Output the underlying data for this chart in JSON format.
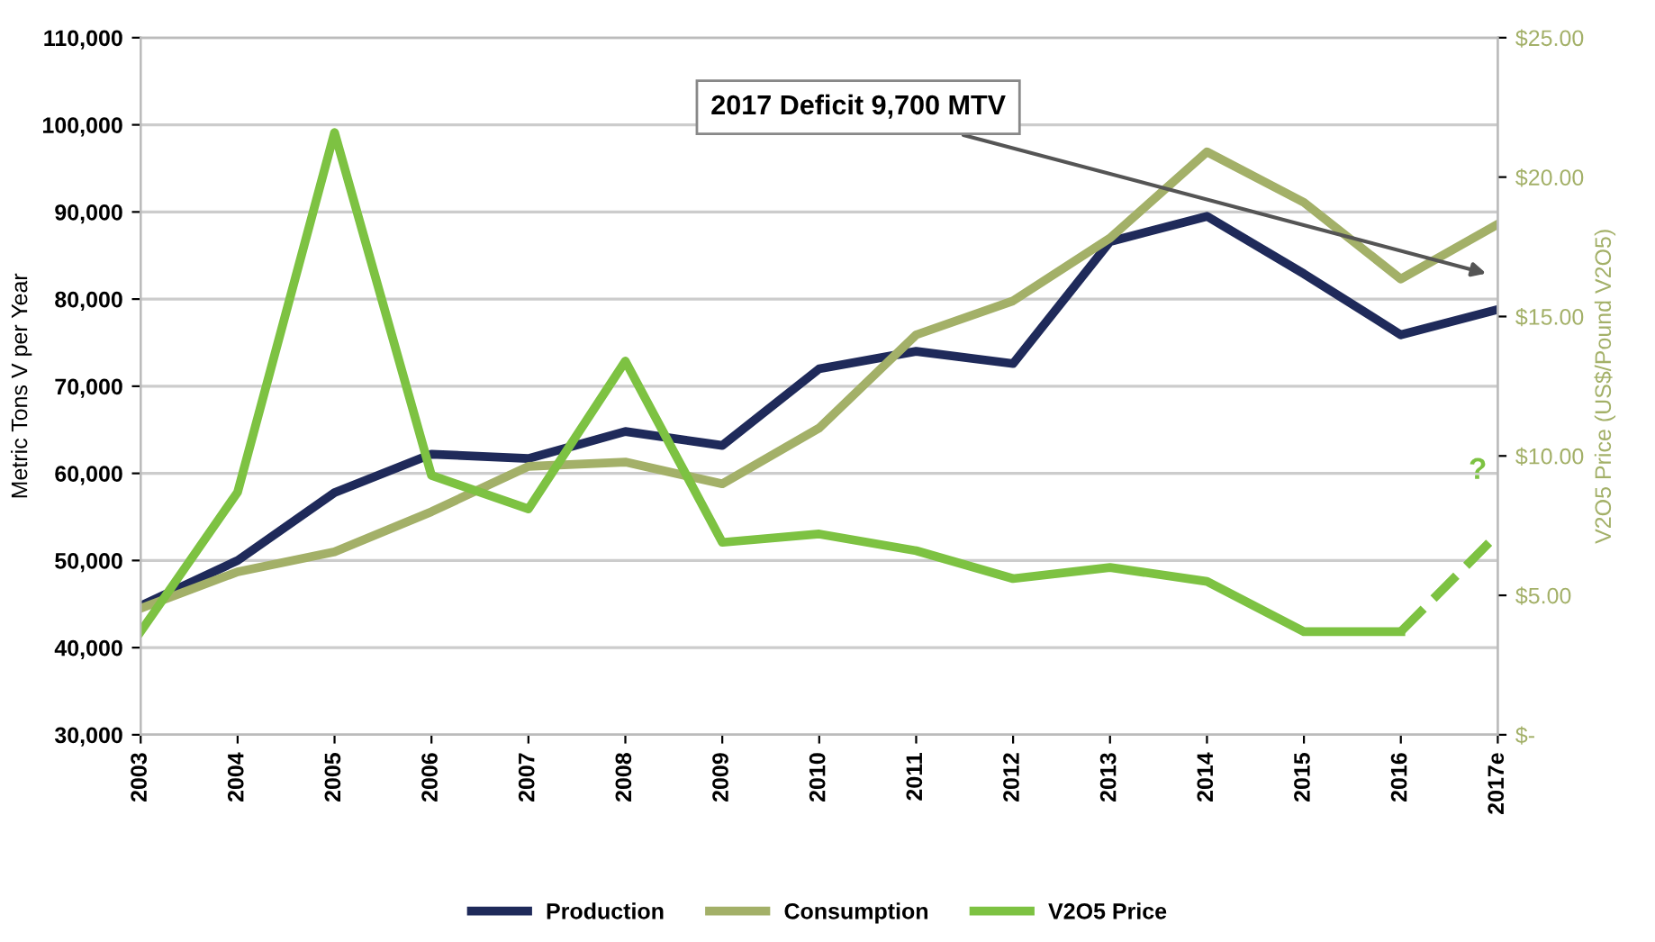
{
  "chart_data": {
    "type": "line",
    "categories": [
      "2003",
      "2004",
      "2005",
      "2006",
      "2007",
      "2008",
      "2009",
      "2010",
      "2011",
      "2012",
      "2013",
      "2014",
      "2015",
      "2016",
      "2017e"
    ],
    "series": [
      {
        "name": "Production",
        "color": "#1f2a5a",
        "values": [
          44800,
          50000,
          57800,
          62200,
          61700,
          64800,
          63200,
          72000,
          74000,
          72600,
          86600,
          89500,
          82900,
          75900,
          78800
        ]
      },
      {
        "name": "Consumption",
        "color": "#a3b068",
        "values": [
          44500,
          48700,
          51000,
          55600,
          60800,
          61300,
          58800,
          65200,
          75900,
          79800,
          87000,
          96900,
          91100,
          82300,
          88600
        ]
      },
      {
        "name": "V2O5 Price",
        "color": "#7dc242",
        "axis": "y2",
        "values": [
          3.7,
          8.7,
          21.6,
          9.3,
          8.1,
          13.4,
          6.9,
          7.2,
          6.6,
          5.6,
          6.0,
          5.5,
          3.7,
          3.7,
          null
        ]
      },
      {
        "color": "#7dc242",
        "axis": "y2",
        "line_style": "dashed",
        "values": [
          null,
          null,
          null,
          null,
          null,
          null,
          null,
          null,
          null,
          null,
          null,
          null,
          null,
          3.7,
          7.2
        ]
      }
    ],
    "ylabel": "Metric Tons V per Year",
    "y2label": "V2O5 Price (US$/Pound V2O5)",
    "ylim": [
      30000,
      110000
    ],
    "yticks": [
      {
        "value": 30000,
        "label": "30,000"
      },
      {
        "value": 40000,
        "label": "40,000"
      },
      {
        "value": 50000,
        "label": "50,000"
      },
      {
        "value": 60000,
        "label": "60,000"
      },
      {
        "value": 70000,
        "label": "70,000"
      },
      {
        "value": 80000,
        "label": "80,000"
      },
      {
        "value": 90000,
        "label": "90,000"
      },
      {
        "value": 100000,
        "label": "100,000"
      },
      {
        "value": 110000,
        "label": "110,000"
      }
    ],
    "y2lim": [
      0,
      25
    ],
    "y2ticks": [
      {
        "value": 0,
        "label": "$-"
      },
      {
        "value": 5,
        "label": "$5.00"
      },
      {
        "value": 10,
        "label": "$10.00"
      },
      {
        "value": 15,
        "label": "$15.00"
      },
      {
        "value": 20,
        "label": "$20.00"
      },
      {
        "value": 25,
        "label": "$25.00"
      }
    ],
    "annotations": [
      "2017 Deficit 9,700 MTV",
      "?"
    ],
    "grid": "y",
    "legend": "bottom"
  }
}
